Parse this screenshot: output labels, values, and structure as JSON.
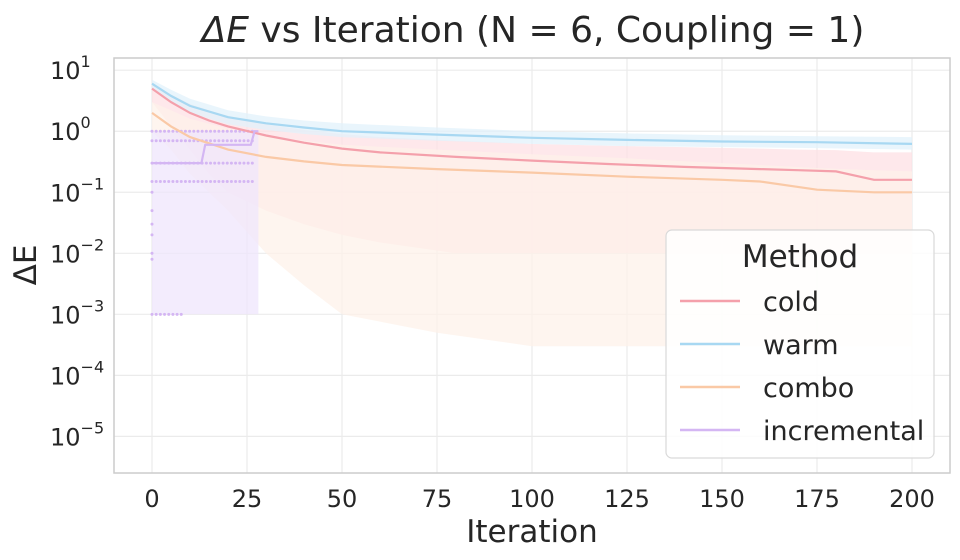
{
  "chart_data": {
    "type": "line",
    "title_prefix": "ΔE",
    "title_suffix": " vs Iteration (N = 6, Coupling = 1)",
    "xlabel": "Iteration",
    "ylabel": "ΔE",
    "xlim": [
      -10,
      210
    ],
    "ylim_log10": [
      -5.6,
      1.2
    ],
    "yscale": "log",
    "grid": true,
    "legend_position": "lower-right",
    "legend_title": "Method",
    "x_ticks": [
      0,
      25,
      50,
      75,
      100,
      125,
      150,
      175,
      200
    ],
    "y_ticks": [
      {
        "base": "10",
        "exp": "1"
      },
      {
        "base": "10",
        "exp": "0"
      },
      {
        "base": "10",
        "exp": "−1"
      },
      {
        "base": "10",
        "exp": "−2"
      },
      {
        "base": "10",
        "exp": "−3"
      },
      {
        "base": "10",
        "exp": "−4"
      },
      {
        "base": "10",
        "exp": "−5"
      }
    ],
    "y_tick_values": [
      1,
      0,
      -1,
      -2,
      -3,
      -4,
      -5
    ],
    "series": [
      {
        "name": "cold",
        "color": "#f4a0ab",
        "band_color": "#fde0e4",
        "x": [
          0,
          5,
          10,
          15,
          20,
          30,
          40,
          50,
          60,
          80,
          100,
          120,
          140,
          160,
          170,
          180,
          190,
          200
        ],
        "y": [
          5.0,
          3.0,
          2.0,
          1.5,
          1.2,
          0.85,
          0.65,
          0.52,
          0.45,
          0.38,
          0.33,
          0.29,
          0.26,
          0.24,
          0.23,
          0.22,
          0.16,
          0.16
        ],
        "band_upper": [
          6.0,
          4.0,
          2.8,
          2.2,
          1.8,
          1.3,
          1.05,
          0.9,
          0.8,
          0.7,
          0.62,
          0.58,
          0.55,
          0.52,
          0.5,
          0.49,
          0.45,
          0.45
        ],
        "band_lower": [
          3.0,
          1.2,
          0.5,
          0.2,
          0.1,
          0.05,
          0.03,
          0.02,
          0.015,
          0.01,
          0.01,
          0.01,
          0.01,
          0.01,
          0.01,
          0.01,
          0.01,
          0.01
        ]
      },
      {
        "name": "warm",
        "color": "#a8d8f2",
        "band_color": "#e1f1fb",
        "x": [
          0,
          5,
          10,
          20,
          30,
          40,
          50,
          75,
          100,
          125,
          150,
          175,
          200
        ],
        "y": [
          6.0,
          3.8,
          2.6,
          1.7,
          1.35,
          1.15,
          1.0,
          0.88,
          0.78,
          0.72,
          0.68,
          0.66,
          0.62
        ],
        "band_upper": [
          7.0,
          4.8,
          3.4,
          2.2,
          1.75,
          1.5,
          1.35,
          1.15,
          1.0,
          0.92,
          0.86,
          0.83,
          0.8
        ],
        "band_lower": [
          5.0,
          3.0,
          2.0,
          1.3,
          1.05,
          0.9,
          0.8,
          0.7,
          0.62,
          0.57,
          0.55,
          0.53,
          0.5
        ]
      },
      {
        "name": "combo",
        "color": "#fac9a6",
        "band_color": "#fef2ea",
        "x": [
          0,
          5,
          10,
          20,
          30,
          40,
          50,
          75,
          100,
          125,
          150,
          160,
          175,
          190,
          200
        ],
        "y": [
          2.0,
          1.2,
          0.8,
          0.5,
          0.38,
          0.32,
          0.28,
          0.24,
          0.21,
          0.18,
          0.16,
          0.15,
          0.11,
          0.1,
          0.1
        ],
        "band_upper": [
          3.0,
          2.2,
          1.6,
          1.1,
          0.85,
          0.7,
          0.6,
          0.5,
          0.42,
          0.36,
          0.3,
          0.28,
          0.25,
          0.23,
          0.22
        ],
        "band_lower": [
          1.0,
          0.5,
          0.2,
          0.05,
          0.01,
          0.003,
          0.001,
          0.0005,
          0.0003,
          0.0003,
          0.0003,
          0.0003,
          0.0003,
          0.0003,
          0.0003
        ]
      },
      {
        "name": "incremental",
        "color": "#d4b6f3",
        "band_color": "#efe5fc",
        "x": [
          0,
          3,
          13,
          14,
          26,
          27,
          28
        ],
        "y": [
          0.3,
          0.3,
          0.3,
          0.6,
          0.6,
          1.0,
          1.0
        ],
        "band_upper": [
          1.0,
          1.0,
          1.0,
          1.0,
          1.0,
          1.0,
          1.0
        ],
        "band_lower": [
          0.001,
          0.001,
          0.001,
          0.001,
          0.001,
          0.001,
          0.001
        ]
      }
    ],
    "incremental_markers": {
      "x_range": [
        0,
        27
      ],
      "y_levels": [
        1.0,
        0.7,
        0.3,
        0.15,
        0.001
      ],
      "scatter_y": [
        0.03,
        0.05,
        0.1,
        0.02,
        0.01,
        0.008
      ]
    }
  }
}
